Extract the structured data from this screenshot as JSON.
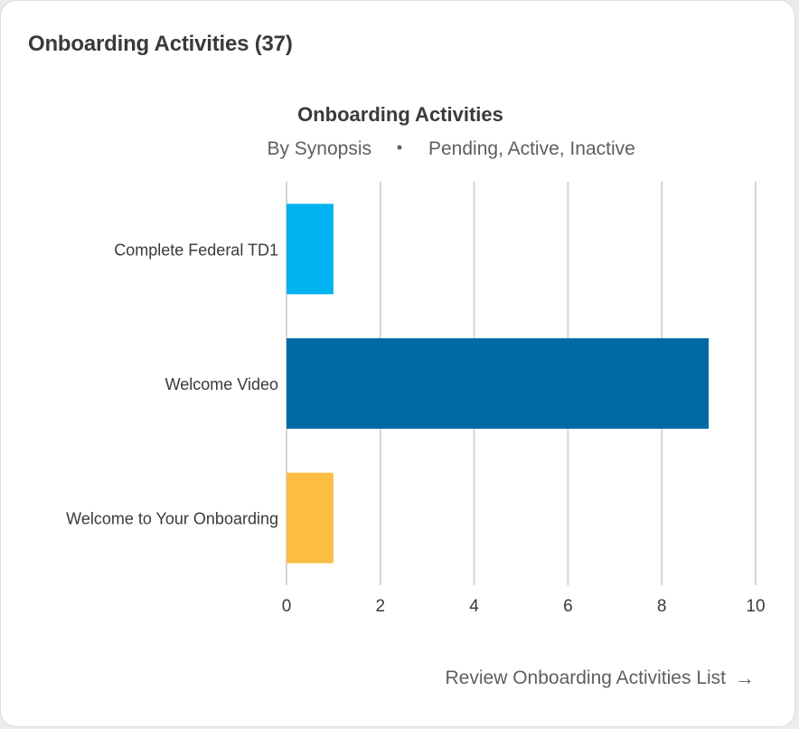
{
  "card": {
    "title": "Onboarding Activities (37)"
  },
  "footer": {
    "link_label": "Review Onboarding Activities List",
    "link_icon": "arrow-right-icon"
  },
  "chart_data": {
    "type": "bar",
    "orientation": "horizontal",
    "title": "Onboarding Activities",
    "subtitle_left": "By Synopsis",
    "subtitle_separator": "•",
    "subtitle_right": "Pending, Active, Inactive",
    "categories": [
      "Complete Federal TD1",
      "Welcome Video",
      "Welcome to Your Onboarding"
    ],
    "values": [
      1,
      9,
      1
    ],
    "colors": [
      "#00b2ef",
      "#006aa7",
      "#fdbd41"
    ],
    "xlim": [
      0,
      10
    ],
    "xticks": [
      0,
      2,
      4,
      6,
      8,
      10
    ],
    "grid": true,
    "legend": "none"
  }
}
